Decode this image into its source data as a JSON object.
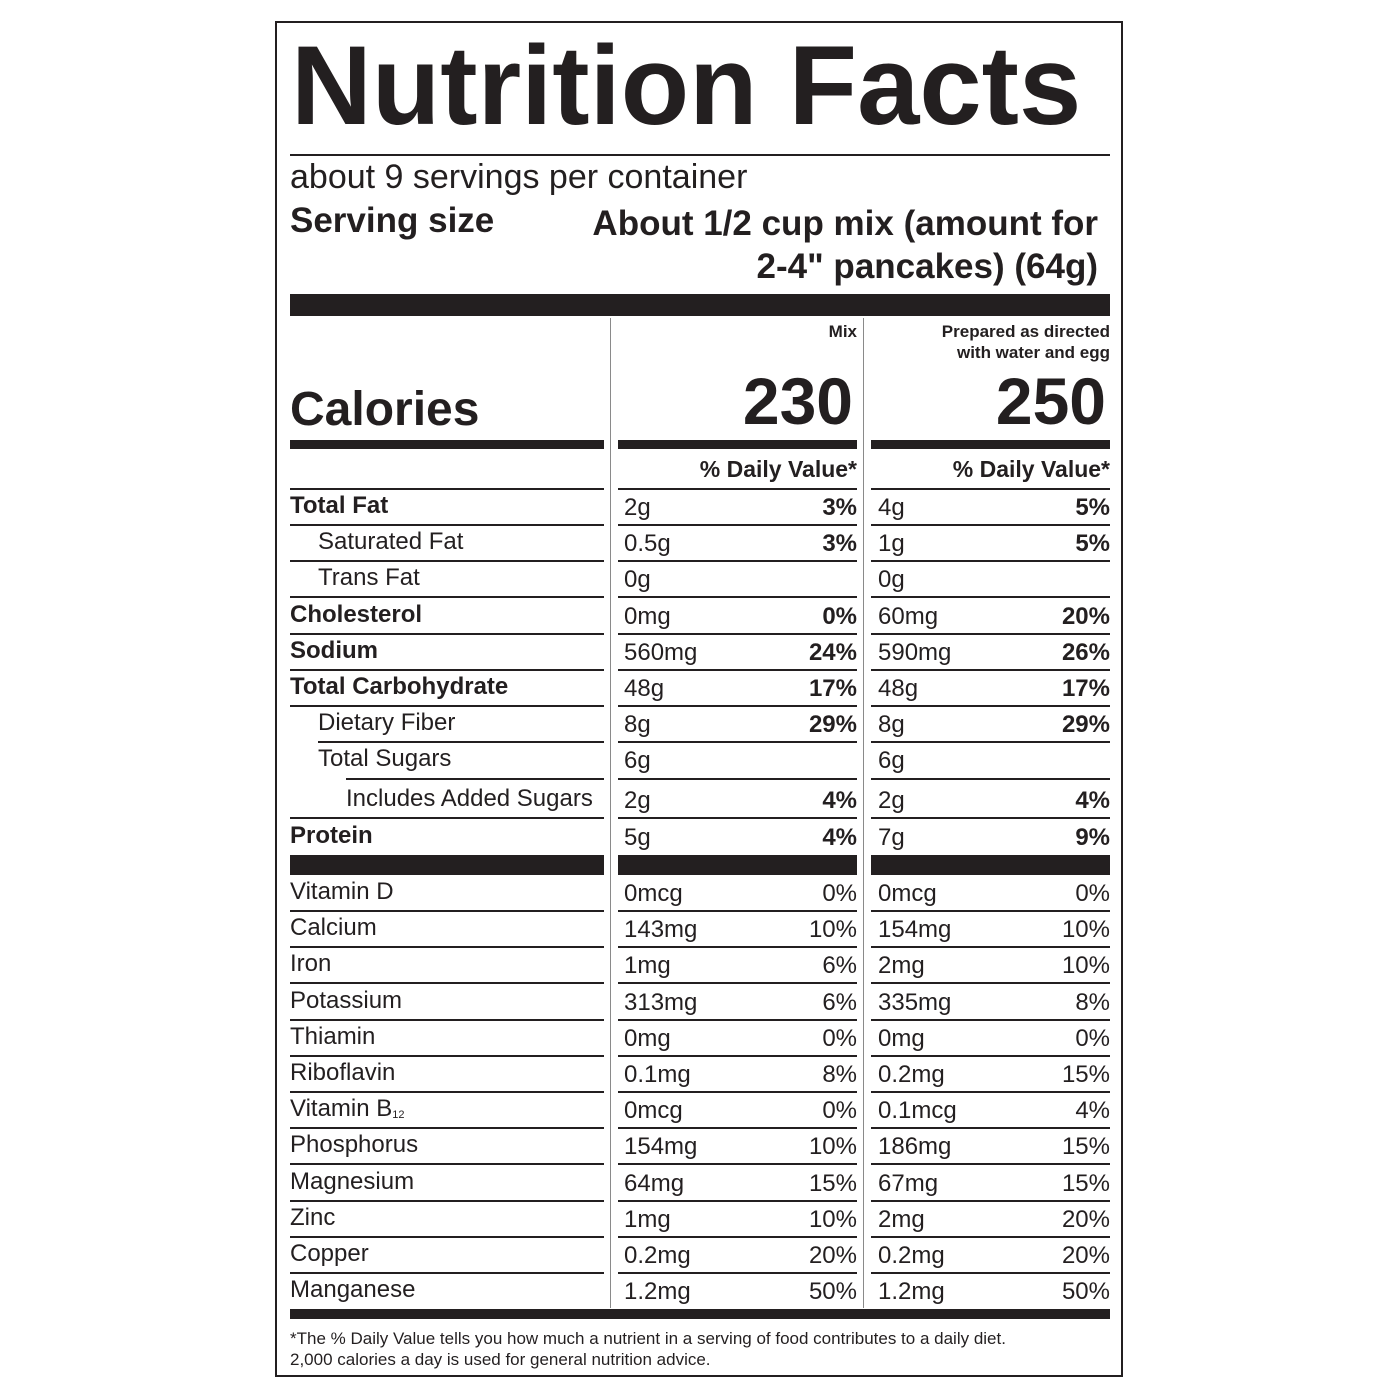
{
  "title": "Nutrition Facts",
  "servings_per_container": "about 9 servings per container",
  "serving_size_label": "Serving size",
  "serving_size_line1": "About 1/2 cup mix (amount for",
  "serving_size_line2": "2-4\" pancakes) (64g)",
  "columns": {
    "mix_header": "Mix",
    "prepared_header_line1": "Prepared as directed",
    "prepared_header_line2": "with water and egg"
  },
  "calories_label": "Calories",
  "calories_mix": "230",
  "calories_prepared": "250",
  "daily_value_header": "% Daily Value*",
  "nutrients": [
    {
      "name": "Total Fat",
      "mix_amount": "2g",
      "mix_pct": "3%",
      "prep_amount": "4g",
      "prep_pct": "5%"
    },
    {
      "name": "Saturated Fat",
      "mix_amount": "0.5g",
      "mix_pct": "3%",
      "prep_amount": "1g",
      "prep_pct": "5%"
    },
    {
      "name": "Trans Fat",
      "mix_amount": "0g",
      "mix_pct": "",
      "prep_amount": "0g",
      "prep_pct": ""
    },
    {
      "name": "Cholesterol",
      "mix_amount": "0mg",
      "mix_pct": "0%",
      "prep_amount": "60mg",
      "prep_pct": "20%"
    },
    {
      "name": "Sodium",
      "mix_amount": "560mg",
      "mix_pct": "24%",
      "prep_amount": "590mg",
      "prep_pct": "26%"
    },
    {
      "name": "Total Carbohydrate",
      "mix_amount": "48g",
      "mix_pct": "17%",
      "prep_amount": "48g",
      "prep_pct": "17%"
    },
    {
      "name": "Dietary Fiber",
      "mix_amount": "8g",
      "mix_pct": "29%",
      "prep_amount": "8g",
      "prep_pct": "29%"
    },
    {
      "name": "Total Sugars",
      "mix_amount": "6g",
      "mix_pct": "",
      "prep_amount": "6g",
      "prep_pct": ""
    },
    {
      "name": "Includes Added Sugars",
      "mix_amount": "2g",
      "mix_pct": "4%",
      "prep_amount": "2g",
      "prep_pct": "4%"
    },
    {
      "name": "Protein",
      "mix_amount": "5g",
      "mix_pct": "4%",
      "prep_amount": "7g",
      "prep_pct": "9%"
    }
  ],
  "vitamins": [
    {
      "name": "Vitamin D",
      "mix_amount": "0mcg",
      "mix_pct": "0%",
      "prep_amount": "0mcg",
      "prep_pct": "0%"
    },
    {
      "name": "Calcium",
      "mix_amount": "143mg",
      "mix_pct": "10%",
      "prep_amount": "154mg",
      "prep_pct": "10%"
    },
    {
      "name": "Iron",
      "mix_amount": "1mg",
      "mix_pct": "6%",
      "prep_amount": "2mg",
      "prep_pct": "10%"
    },
    {
      "name": "Potassium",
      "mix_amount": "313mg",
      "mix_pct": "6%",
      "prep_amount": "335mg",
      "prep_pct": "8%"
    },
    {
      "name": "Thiamin",
      "mix_amount": "0mg",
      "mix_pct": "0%",
      "prep_amount": "0mg",
      "prep_pct": "0%"
    },
    {
      "name": "Riboflavin",
      "mix_amount": "0.1mg",
      "mix_pct": "8%",
      "prep_amount": "0.2mg",
      "prep_pct": "15%"
    },
    {
      "name": "Vitamin B",
      "subscript": "12",
      "mix_amount": "0mcg",
      "mix_pct": "0%",
      "prep_amount": "0.1mcg",
      "prep_pct": "4%"
    },
    {
      "name": "Phosphorus",
      "mix_amount": "154mg",
      "mix_pct": "10%",
      "prep_amount": "186mg",
      "prep_pct": "15%"
    },
    {
      "name": "Magnesium",
      "mix_amount": "64mg",
      "mix_pct": "15%",
      "prep_amount": "67mg",
      "prep_pct": "15%"
    },
    {
      "name": "Zinc",
      "mix_amount": "1mg",
      "mix_pct": "10%",
      "prep_amount": "2mg",
      "prep_pct": "20%"
    },
    {
      "name": "Copper",
      "mix_amount": "0.2mg",
      "mix_pct": "20%",
      "prep_amount": "0.2mg",
      "prep_pct": "20%"
    },
    {
      "name": "Manganese",
      "mix_amount": "1.2mg",
      "mix_pct": "50%",
      "prep_amount": "1.2mg",
      "prep_pct": "50%"
    }
  ],
  "footnote_line1": "*The % Daily Value tells you how much a nutrient in a serving of food contributes to a daily diet.",
  "footnote_line2": "2,000 calories a day is used for general nutrition advice."
}
